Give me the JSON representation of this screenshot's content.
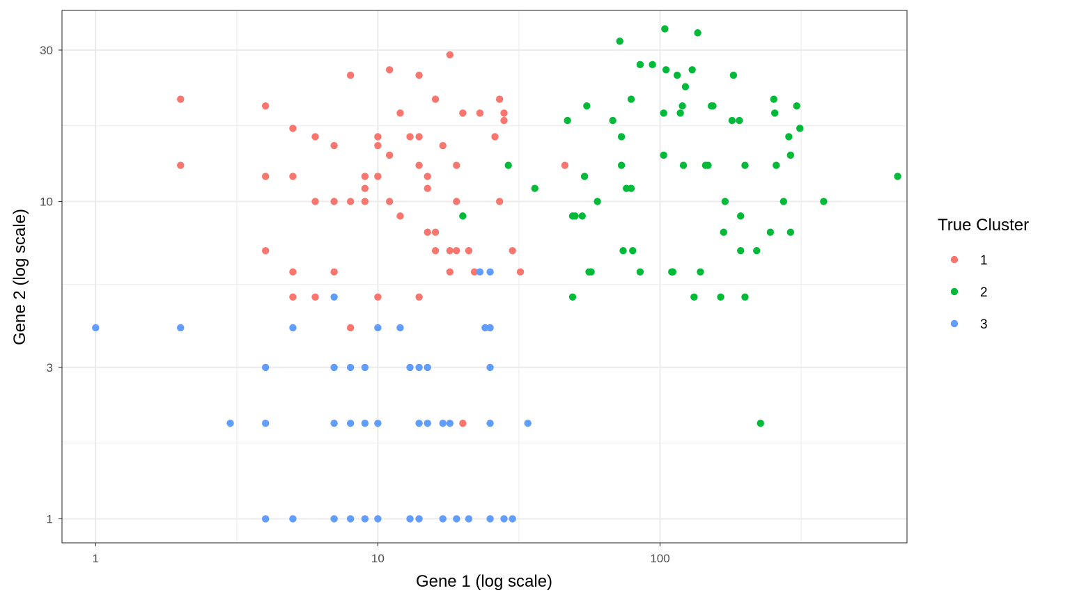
{
  "chart_data": {
    "type": "scatter",
    "title": "",
    "xlabel": "Gene 1 (log scale)",
    "ylabel": "Gene 2 (log scale)",
    "x_scale": "log",
    "y_scale": "log",
    "xlim": [
      0.76,
      750
    ],
    "ylim": [
      0.84,
      40
    ],
    "x_ticks": [
      1,
      10,
      100
    ],
    "x_tick_labels": [
      "1",
      "10",
      "100"
    ],
    "y_ticks": [
      1,
      3,
      10,
      30
    ],
    "y_tick_labels": [
      "1",
      "3",
      "10",
      "30"
    ],
    "grid": true,
    "legend": {
      "title": "True Cluster",
      "position": "right"
    },
    "series": [
      {
        "name": "1",
        "color": "#F8766D",
        "points": [
          [
            2,
            21
          ],
          [
            2,
            13
          ],
          [
            4,
            20
          ],
          [
            4,
            12
          ],
          [
            4,
            7
          ],
          [
            5,
            17
          ],
          [
            5,
            12
          ],
          [
            5,
            6
          ],
          [
            5,
            5
          ],
          [
            6,
            16
          ],
          [
            6,
            10
          ],
          [
            6,
            5
          ],
          [
            7,
            15
          ],
          [
            7,
            10
          ],
          [
            7,
            6
          ],
          [
            8,
            25
          ],
          [
            8,
            10
          ],
          [
            8,
            4
          ],
          [
            9,
            12
          ],
          [
            9,
            11
          ],
          [
            9,
            10
          ],
          [
            10,
            16
          ],
          [
            10,
            15
          ],
          [
            10,
            12
          ],
          [
            10,
            5
          ],
          [
            11,
            26
          ],
          [
            11,
            14
          ],
          [
            11,
            10
          ],
          [
            12,
            19
          ],
          [
            12,
            9
          ],
          [
            13,
            16
          ],
          [
            14,
            25
          ],
          [
            14,
            16
          ],
          [
            14,
            13
          ],
          [
            14,
            5
          ],
          [
            15,
            12
          ],
          [
            15,
            11
          ],
          [
            15,
            8
          ],
          [
            16,
            21
          ],
          [
            16,
            8
          ],
          [
            16,
            7
          ],
          [
            17,
            15
          ],
          [
            18,
            29
          ],
          [
            18,
            7
          ],
          [
            18,
            6
          ],
          [
            19,
            13
          ],
          [
            19,
            10
          ],
          [
            19,
            7
          ],
          [
            20,
            19
          ],
          [
            20,
            2
          ],
          [
            21,
            7
          ],
          [
            22,
            6
          ],
          [
            23,
            19
          ],
          [
            26,
            16
          ],
          [
            27,
            21
          ],
          [
            27,
            10
          ],
          [
            28,
            19
          ],
          [
            28,
            18
          ],
          [
            30,
            7
          ],
          [
            32,
            6
          ],
          [
            46,
            13
          ]
        ]
      },
      {
        "name": "2",
        "color": "#00BA38",
        "points": [
          [
            20,
            9
          ],
          [
            29,
            13
          ],
          [
            36,
            11
          ],
          [
            47,
            18
          ],
          [
            49,
            9
          ],
          [
            49,
            5
          ],
          [
            50,
            9
          ],
          [
            53,
            9
          ],
          [
            54,
            12
          ],
          [
            55,
            20
          ],
          [
            56,
            6
          ],
          [
            57,
            6
          ],
          [
            60,
            10
          ],
          [
            68,
            18
          ],
          [
            72,
            32
          ],
          [
            73,
            16
          ],
          [
            73,
            13
          ],
          [
            74,
            7
          ],
          [
            76,
            11
          ],
          [
            79,
            11
          ],
          [
            79,
            21
          ],
          [
            80,
            7
          ],
          [
            85,
            27
          ],
          [
            85,
            6
          ],
          [
            94,
            27
          ],
          [
            103,
            19
          ],
          [
            103,
            14
          ],
          [
            104,
            35
          ],
          [
            105,
            26
          ],
          [
            110,
            6
          ],
          [
            111,
            6
          ],
          [
            115,
            25
          ],
          [
            118,
            19
          ],
          [
            120,
            20
          ],
          [
            121,
            13
          ],
          [
            123,
            23
          ],
          [
            130,
            26
          ],
          [
            132,
            5
          ],
          [
            136,
            34
          ],
          [
            139,
            6
          ],
          [
            145,
            13
          ],
          [
            148,
            13
          ],
          [
            152,
            20
          ],
          [
            154,
            20
          ],
          [
            164,
            5
          ],
          [
            168,
            8
          ],
          [
            170,
            10
          ],
          [
            180,
            18
          ],
          [
            182,
            25
          ],
          [
            191,
            18
          ],
          [
            193,
            7
          ],
          [
            193,
            9
          ],
          [
            200,
            13
          ],
          [
            200,
            5
          ],
          [
            220,
            7
          ],
          [
            227,
            2
          ],
          [
            246,
            8
          ],
          [
            253,
            21
          ],
          [
            255,
            19
          ],
          [
            258,
            13
          ],
          [
            274,
            10
          ],
          [
            286,
            16
          ],
          [
            290,
            14
          ],
          [
            290,
            8
          ],
          [
            305,
            20
          ],
          [
            313,
            17
          ],
          [
            380,
            10
          ],
          [
            695,
            12
          ]
        ]
      },
      {
        "name": "3",
        "color": "#619CFF",
        "points": [
          [
            1,
            4
          ],
          [
            2,
            4
          ],
          [
            3,
            2
          ],
          [
            4,
            3
          ],
          [
            4,
            2
          ],
          [
            4,
            1
          ],
          [
            5,
            4
          ],
          [
            5,
            1
          ],
          [
            7,
            5
          ],
          [
            7,
            3
          ],
          [
            7,
            2
          ],
          [
            7,
            1
          ],
          [
            8,
            3
          ],
          [
            8,
            2
          ],
          [
            8,
            1
          ],
          [
            9,
            3
          ],
          [
            9,
            2
          ],
          [
            9,
            1
          ],
          [
            10,
            4
          ],
          [
            10,
            2
          ],
          [
            10,
            1
          ],
          [
            12,
            4
          ],
          [
            13,
            3
          ],
          [
            13,
            1
          ],
          [
            14,
            3
          ],
          [
            14,
            2
          ],
          [
            14,
            1
          ],
          [
            15,
            3
          ],
          [
            15,
            2
          ],
          [
            17,
            2
          ],
          [
            17,
            1
          ],
          [
            18,
            2
          ],
          [
            19,
            1
          ],
          [
            21,
            1
          ],
          [
            23,
            6
          ],
          [
            24,
            4
          ],
          [
            25,
            6
          ],
          [
            25,
            4
          ],
          [
            25,
            3
          ],
          [
            25,
            2
          ],
          [
            25,
            1
          ],
          [
            28,
            1
          ],
          [
            30,
            1
          ],
          [
            34,
            2
          ]
        ]
      }
    ]
  }
}
